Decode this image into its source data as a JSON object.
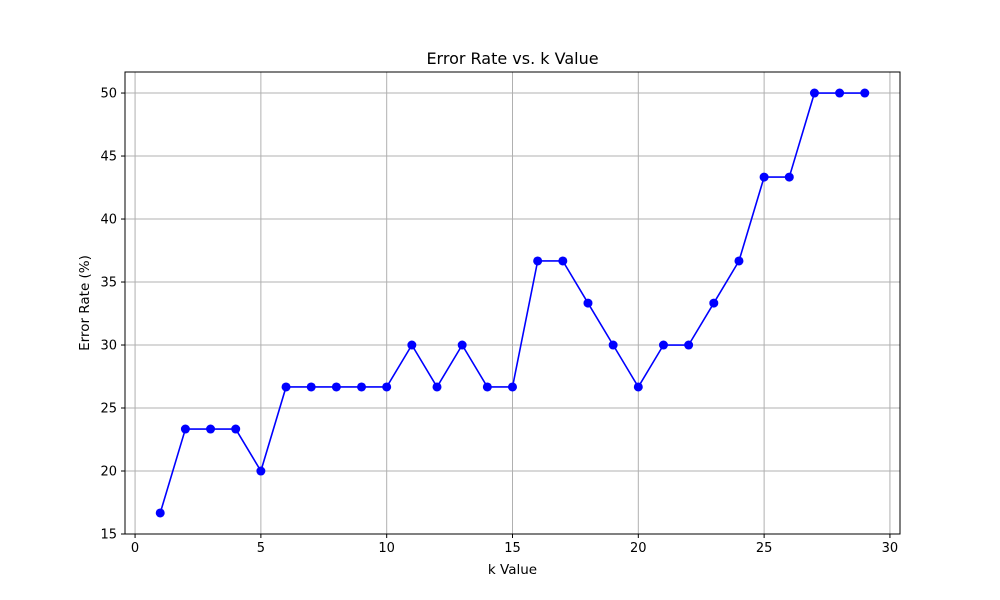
{
  "chart_data": {
    "type": "line",
    "title": "Error Rate vs. k Value",
    "xlabel": "k Value",
    "ylabel": "Error Rate (%)",
    "xlim": [
      -0.4,
      30.4
    ],
    "ylim": [
      15,
      51.67
    ],
    "xticks": [
      0,
      5,
      10,
      15,
      20,
      25,
      30
    ],
    "yticks": [
      15,
      20,
      25,
      30,
      35,
      40,
      45,
      50
    ],
    "grid": true,
    "series": [
      {
        "color": "#0000ff",
        "marker": "circle",
        "x": [
          1,
          2,
          3,
          4,
          5,
          6,
          7,
          8,
          9,
          10,
          11,
          12,
          13,
          14,
          15,
          16,
          17,
          18,
          19,
          20,
          21,
          22,
          23,
          24,
          25,
          26,
          27,
          28,
          29
        ],
        "y": [
          16.67,
          23.33,
          23.33,
          23.33,
          20.0,
          26.67,
          26.67,
          26.67,
          26.67,
          26.67,
          30.0,
          26.67,
          30.0,
          26.67,
          26.67,
          36.67,
          36.67,
          33.33,
          30.0,
          26.67,
          30.0,
          30.0,
          33.33,
          36.67,
          43.33,
          43.33,
          50.0,
          50.0,
          50.0
        ]
      }
    ]
  }
}
